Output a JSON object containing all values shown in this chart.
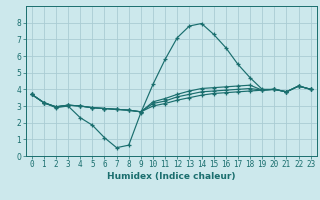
{
  "background_color": "#cce8ec",
  "grid_color": "#aaccd4",
  "line_color": "#1a6e6e",
  "marker": "+",
  "xlabel": "Humidex (Indice chaleur)",
  "ylim": [
    0,
    9
  ],
  "xlim": [
    -0.5,
    23.5
  ],
  "yticks": [
    0,
    1,
    2,
    3,
    4,
    5,
    6,
    7,
    8
  ],
  "xticks": [
    0,
    1,
    2,
    3,
    4,
    5,
    6,
    7,
    8,
    9,
    10,
    11,
    12,
    13,
    14,
    15,
    16,
    17,
    18,
    19,
    20,
    21,
    22,
    23
  ],
  "lines": [
    {
      "x": [
        0,
        1,
        2,
        3,
        4,
        5,
        6,
        7,
        8,
        9,
        10,
        11,
        12,
        13,
        14,
        15,
        16,
        17,
        18,
        19,
        20,
        21,
        22,
        23
      ],
      "y": [
        3.7,
        3.2,
        2.9,
        3.0,
        2.3,
        1.85,
        1.1,
        0.5,
        0.65,
        2.6,
        4.3,
        5.8,
        7.1,
        7.8,
        7.95,
        7.3,
        6.5,
        5.5,
        4.7,
        4.0,
        4.0,
        3.85,
        4.2,
        4.0
      ]
    },
    {
      "x": [
        0,
        1,
        2,
        3,
        4,
        5,
        6,
        7,
        8,
        9,
        10,
        11,
        12,
        13,
        14,
        15,
        16,
        17,
        18,
        19,
        20,
        21,
        22,
        23
      ],
      "y": [
        3.7,
        3.2,
        2.95,
        3.05,
        3.0,
        2.9,
        2.85,
        2.8,
        2.75,
        2.65,
        3.0,
        3.15,
        3.35,
        3.5,
        3.65,
        3.75,
        3.8,
        3.85,
        3.9,
        3.95,
        4.0,
        3.85,
        4.2,
        4.0
      ]
    },
    {
      "x": [
        0,
        1,
        2,
        3,
        4,
        5,
        6,
        7,
        8,
        9,
        10,
        11,
        12,
        13,
        14,
        15,
        16,
        17,
        18,
        19,
        20,
        21,
        22,
        23
      ],
      "y": [
        3.7,
        3.2,
        2.95,
        3.05,
        3.0,
        2.9,
        2.85,
        2.8,
        2.75,
        2.65,
        3.15,
        3.3,
        3.55,
        3.7,
        3.85,
        3.9,
        3.95,
        4.0,
        4.05,
        3.95,
        4.0,
        3.85,
        4.2,
        4.0
      ]
    },
    {
      "x": [
        0,
        1,
        2,
        3,
        4,
        5,
        6,
        7,
        8,
        9,
        10,
        11,
        12,
        13,
        14,
        15,
        16,
        17,
        18,
        19,
        20,
        21,
        22,
        23
      ],
      "y": [
        3.7,
        3.2,
        2.95,
        3.05,
        3.0,
        2.9,
        2.85,
        2.8,
        2.75,
        2.65,
        3.25,
        3.45,
        3.7,
        3.9,
        4.05,
        4.1,
        4.15,
        4.2,
        4.25,
        3.95,
        4.0,
        3.85,
        4.2,
        4.0
      ]
    }
  ],
  "tick_fontsize": 5.5,
  "xlabel_fontsize": 6.5,
  "ylabel_fontsize": 6.5
}
